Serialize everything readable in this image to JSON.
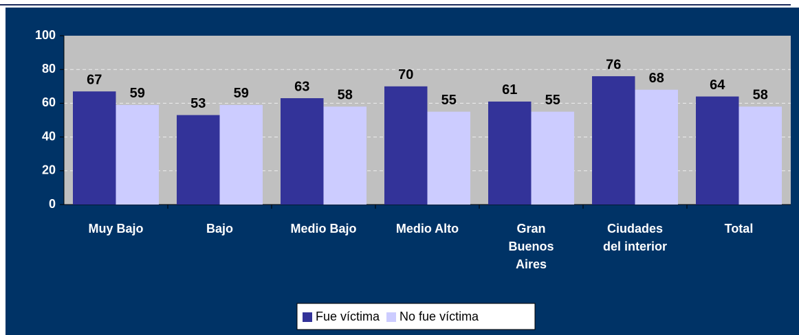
{
  "chart_data": {
    "type": "bar",
    "categories": [
      "Muy Bajo",
      "Bajo",
      "Medio Bajo",
      "Medio Alto",
      "Gran Buenos Aires",
      "Ciudades del interior",
      "Total"
    ],
    "series": [
      {
        "name": "Fue víctima",
        "color": "#333399",
        "values": [
          67,
          53,
          63,
          70,
          61,
          76,
          64
        ]
      },
      {
        "name": "No fue víctima",
        "color": "#ccccff",
        "values": [
          59,
          59,
          58,
          55,
          55,
          68,
          58
        ]
      }
    ],
    "ylim": [
      0,
      100
    ],
    "yticks": [
      0,
      20,
      40,
      60,
      80,
      100
    ],
    "grid": true,
    "legend": "bottom"
  }
}
